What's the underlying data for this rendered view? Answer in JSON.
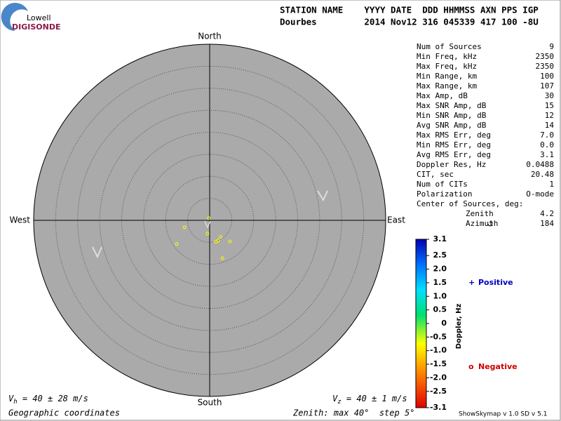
{
  "logo": {
    "top": "Lowell",
    "bottom": "DIGISONDE"
  },
  "header": {
    "line1": "STATION NAME    YYYY DATE  DDD HHMMSS AXN PPS IGP",
    "line2": "Dourbes         2014 Nov12 316 045339 417 100 -8U"
  },
  "compass": {
    "north": "North",
    "south": "South",
    "east": "East",
    "west": "West"
  },
  "rings": {
    "max": 40,
    "step": 5
  },
  "sources": {
    "color": "#ffff00",
    "points": [
      {
        "east": -0.2,
        "north": 0.5
      },
      {
        "east": -5.7,
        "north": -1.6
      },
      {
        "east": -0.5,
        "north": -3.0
      },
      {
        "east": 1.9,
        "north": -4.6
      },
      {
        "east": 1.4,
        "north": -4.9
      },
      {
        "east": 2.5,
        "north": -3.8
      },
      {
        "east": 4.6,
        "north": -4.8
      },
      {
        "east": -7.5,
        "north": -5.4
      },
      {
        "east": 2.9,
        "north": -8.6
      }
    ]
  },
  "stats": [
    [
      "Num of Sources",
      "9"
    ],
    [
      "Min Freq, kHz",
      "2350"
    ],
    [
      "Max Freq, kHz",
      "2350"
    ],
    [
      "Min Range, km",
      "100"
    ],
    [
      "Max Range, km",
      "107"
    ],
    [
      "Max Amp, dB",
      "30"
    ],
    [
      "Max SNR Amp, dB",
      "15"
    ],
    [
      "Min SNR Amp, dB",
      "12"
    ],
    [
      "Avg SNR Amp, dB",
      "14"
    ],
    [
      "Max RMS Err, deg",
      "7.0"
    ],
    [
      "Min RMS Err, deg",
      "0.0"
    ],
    [
      "Avg RMS Err, deg",
      "3.1"
    ],
    [
      "Doppler Res, Hz",
      "0.0488"
    ],
    [
      "CIT, sec",
      "20.48"
    ],
    [
      "Num of CITs",
      "1"
    ],
    [
      "Polarization",
      "O-mode"
    ]
  ],
  "center_of_sources": {
    "label": "Center of Sources, deg:",
    "rows": [
      [
        "Zenith",
        "4.2"
      ],
      [
        "Azimuth",
        "184"
      ]
    ]
  },
  "colorbar": {
    "title": "Doppler, Hz",
    "lim": [
      -3.1,
      3.1
    ],
    "ticks": [
      {
        "value": 3.1,
        "label": "3.1"
      },
      {
        "value": 2.5,
        "label": "2.5"
      },
      {
        "value": 2,
        "label": "2.0"
      },
      {
        "value": 1.5,
        "label": "1.5"
      },
      {
        "value": 1,
        "label": "1.0"
      },
      {
        "value": 0.5,
        "label": "0.5"
      },
      0,
      {
        "value": -0.5,
        "label": "-0.5"
      },
      {
        "value": -1,
        "label": "-1.0"
      },
      {
        "value": -1.5,
        "label": "-1.5"
      },
      {
        "value": -2,
        "label": "-2.0"
      },
      {
        "value": -2.5,
        "label": "-2.5"
      },
      {
        "value": -3.1,
        "label": "-3.1"
      }
    ]
  },
  "legend": {
    "positive_symbol": "+",
    "positive": "Positive",
    "negative_symbol": "o",
    "negative": "Negative"
  },
  "footer": {
    "vh_v": "V",
    "vh_sub": "h",
    "vh_rest": " = 40 ± 28 m/s",
    "vz_v": "V",
    "vz_sub": "z",
    "vz_rest": " = 40 ± 1 m/s",
    "coords": "Geographic coordinates",
    "zenith": "Zenith: max 40°  step 5°",
    "version": "ShowSkymap v 1.0   SD v 5.1"
  }
}
